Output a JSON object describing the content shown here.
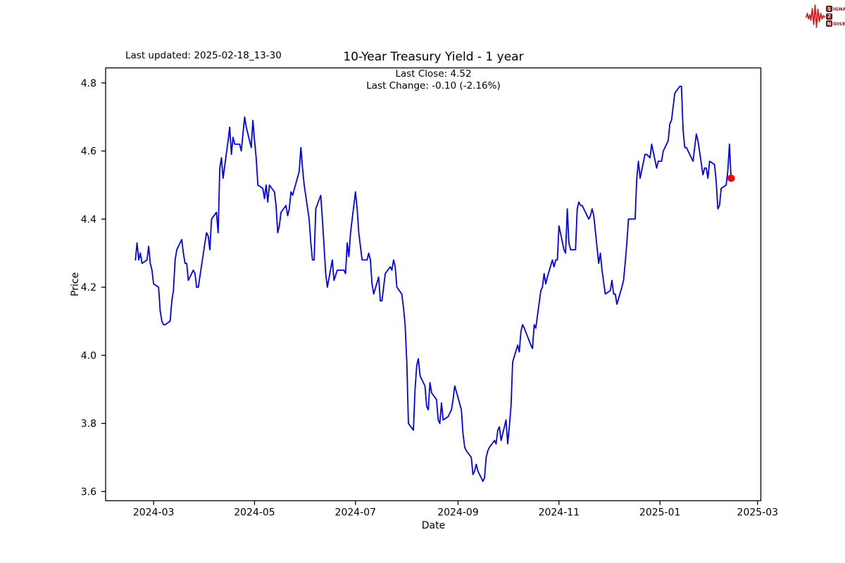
{
  "annotations": {
    "last_updated": "Last updated: 2025-02-18_13-30"
  },
  "logo": {
    "line1_box": "S",
    "line1_rest": "IGNAL",
    "line2_box": "2",
    "line2_rest": "",
    "line3_box": "N",
    "line3_rest": "OISE",
    "waveform_color": "#c01d1d",
    "text_color": "#7d1416"
  },
  "chart_data": {
    "type": "line",
    "title": "10-Year Treasury Yield - 1 year",
    "subtitle_lines": [
      "Last Close: 4.52",
      "Last Change: -0.10 (-2.16%)"
    ],
    "xlabel": "Date",
    "ylabel": "Price",
    "last_close": 4.52,
    "last_change": "-0.10 (-2.16%)",
    "line_color": "#0000ee",
    "marker_color": "#ff0000",
    "grid": false,
    "legend": "none",
    "x_ticks": [
      "2024-03",
      "2024-05",
      "2024-07",
      "2024-09",
      "2024-11",
      "2025-01",
      "2025-03"
    ],
    "y_ticks": [
      "3.6",
      "3.8",
      "4.0",
      "4.2",
      "4.4",
      "4.6",
      "4.8"
    ],
    "x_domain": [
      "2024-02-01",
      "2025-03-03"
    ],
    "y_domain": [
      3.573,
      4.844
    ],
    "series": [
      {
        "name": "10-Year Treasury Yield",
        "points": [
          [
            "2024-02-19",
            4.28
          ],
          [
            "2024-02-20",
            4.33
          ],
          [
            "2024-02-21",
            4.28
          ],
          [
            "2024-02-22",
            4.3
          ],
          [
            "2024-02-23",
            4.27
          ],
          [
            "2024-02-26",
            4.28
          ],
          [
            "2024-02-27",
            4.32
          ],
          [
            "2024-02-28",
            4.27
          ],
          [
            "2024-02-29",
            4.25
          ],
          [
            "2024-03-01",
            4.21
          ],
          [
            "2024-03-04",
            4.2
          ],
          [
            "2024-03-05",
            4.13
          ],
          [
            "2024-03-06",
            4.1
          ],
          [
            "2024-03-07",
            4.09
          ],
          [
            "2024-03-08",
            4.09
          ],
          [
            "2024-03-11",
            4.1
          ],
          [
            "2024-03-12",
            4.16
          ],
          [
            "2024-03-13",
            4.19
          ],
          [
            "2024-03-14",
            4.28
          ],
          [
            "2024-03-15",
            4.31
          ],
          [
            "2024-03-18",
            4.34
          ],
          [
            "2024-03-19",
            4.3
          ],
          [
            "2024-03-20",
            4.27
          ],
          [
            "2024-03-21",
            4.27
          ],
          [
            "2024-03-22",
            4.22
          ],
          [
            "2024-03-25",
            4.25
          ],
          [
            "2024-03-26",
            4.24
          ],
          [
            "2024-03-27",
            4.2
          ],
          [
            "2024-03-28",
            4.2
          ],
          [
            "2024-04-01",
            4.33
          ],
          [
            "2024-04-02",
            4.36
          ],
          [
            "2024-04-03",
            4.35
          ],
          [
            "2024-04-04",
            4.31
          ],
          [
            "2024-04-05",
            4.4
          ],
          [
            "2024-04-08",
            4.42
          ],
          [
            "2024-04-09",
            4.36
          ],
          [
            "2024-04-10",
            4.55
          ],
          [
            "2024-04-11",
            4.58
          ],
          [
            "2024-04-12",
            4.52
          ],
          [
            "2024-04-15",
            4.63
          ],
          [
            "2024-04-16",
            4.67
          ],
          [
            "2024-04-17",
            4.59
          ],
          [
            "2024-04-18",
            4.64
          ],
          [
            "2024-04-19",
            4.62
          ],
          [
            "2024-04-22",
            4.62
          ],
          [
            "2024-04-23",
            4.6
          ],
          [
            "2024-04-24",
            4.65
          ],
          [
            "2024-04-25",
            4.7
          ],
          [
            "2024-04-26",
            4.67
          ],
          [
            "2024-04-29",
            4.61
          ],
          [
            "2024-04-30",
            4.69
          ],
          [
            "2024-05-01",
            4.63
          ],
          [
            "2024-05-02",
            4.58
          ],
          [
            "2024-05-03",
            4.5
          ],
          [
            "2024-05-06",
            4.49
          ],
          [
            "2024-05-07",
            4.46
          ],
          [
            "2024-05-08",
            4.5
          ],
          [
            "2024-05-09",
            4.45
          ],
          [
            "2024-05-10",
            4.5
          ],
          [
            "2024-05-13",
            4.48
          ],
          [
            "2024-05-14",
            4.44
          ],
          [
            "2024-05-15",
            4.36
          ],
          [
            "2024-05-16",
            4.38
          ],
          [
            "2024-05-17",
            4.42
          ],
          [
            "2024-05-20",
            4.44
          ],
          [
            "2024-05-21",
            4.41
          ],
          [
            "2024-05-22",
            4.43
          ],
          [
            "2024-05-23",
            4.48
          ],
          [
            "2024-05-24",
            4.47
          ],
          [
            "2024-05-28",
            4.54
          ],
          [
            "2024-05-29",
            4.61
          ],
          [
            "2024-05-30",
            4.55
          ],
          [
            "2024-05-31",
            4.5
          ],
          [
            "2024-06-03",
            4.4
          ],
          [
            "2024-06-04",
            4.33
          ],
          [
            "2024-06-05",
            4.28
          ],
          [
            "2024-06-06",
            4.28
          ],
          [
            "2024-06-07",
            4.43
          ],
          [
            "2024-06-10",
            4.47
          ],
          [
            "2024-06-11",
            4.4
          ],
          [
            "2024-06-12",
            4.32
          ],
          [
            "2024-06-13",
            4.24
          ],
          [
            "2024-06-14",
            4.2
          ],
          [
            "2024-06-17",
            4.28
          ],
          [
            "2024-06-18",
            4.22
          ],
          [
            "2024-06-20",
            4.25
          ],
          [
            "2024-06-21",
            4.25
          ],
          [
            "2024-06-24",
            4.25
          ],
          [
            "2024-06-25",
            4.24
          ],
          [
            "2024-06-26",
            4.33
          ],
          [
            "2024-06-27",
            4.29
          ],
          [
            "2024-06-28",
            4.36
          ],
          [
            "2024-07-01",
            4.48
          ],
          [
            "2024-07-02",
            4.43
          ],
          [
            "2024-07-03",
            4.36
          ],
          [
            "2024-07-05",
            4.28
          ],
          [
            "2024-07-08",
            4.28
          ],
          [
            "2024-07-09",
            4.3
          ],
          [
            "2024-07-10",
            4.28
          ],
          [
            "2024-07-11",
            4.21
          ],
          [
            "2024-07-12",
            4.18
          ],
          [
            "2024-07-15",
            4.23
          ],
          [
            "2024-07-16",
            4.16
          ],
          [
            "2024-07-17",
            4.16
          ],
          [
            "2024-07-18",
            4.2
          ],
          [
            "2024-07-19",
            4.24
          ],
          [
            "2024-07-22",
            4.26
          ],
          [
            "2024-07-23",
            4.25
          ],
          [
            "2024-07-24",
            4.28
          ],
          [
            "2024-07-25",
            4.26
          ],
          [
            "2024-07-26",
            4.2
          ],
          [
            "2024-07-29",
            4.18
          ],
          [
            "2024-07-30",
            4.14
          ],
          [
            "2024-07-31",
            4.09
          ],
          [
            "2024-08-01",
            3.98
          ],
          [
            "2024-08-02",
            3.8
          ],
          [
            "2024-08-05",
            3.78
          ],
          [
            "2024-08-06",
            3.9
          ],
          [
            "2024-08-07",
            3.97
          ],
          [
            "2024-08-08",
            3.99
          ],
          [
            "2024-08-09",
            3.94
          ],
          [
            "2024-08-12",
            3.91
          ],
          [
            "2024-08-13",
            3.85
          ],
          [
            "2024-08-14",
            3.84
          ],
          [
            "2024-08-15",
            3.92
          ],
          [
            "2024-08-16",
            3.89
          ],
          [
            "2024-08-19",
            3.87
          ],
          [
            "2024-08-20",
            3.81
          ],
          [
            "2024-08-21",
            3.8
          ],
          [
            "2024-08-22",
            3.86
          ],
          [
            "2024-08-23",
            3.81
          ],
          [
            "2024-08-26",
            3.82
          ],
          [
            "2024-08-27",
            3.83
          ],
          [
            "2024-08-28",
            3.84
          ],
          [
            "2024-08-29",
            3.87
          ],
          [
            "2024-08-30",
            3.91
          ],
          [
            "2024-09-03",
            3.84
          ],
          [
            "2024-09-04",
            3.77
          ],
          [
            "2024-09-05",
            3.73
          ],
          [
            "2024-09-06",
            3.72
          ],
          [
            "2024-09-09",
            3.7
          ],
          [
            "2024-09-10",
            3.65
          ],
          [
            "2024-09-11",
            3.66
          ],
          [
            "2024-09-12",
            3.68
          ],
          [
            "2024-09-13",
            3.66
          ],
          [
            "2024-09-16",
            3.63
          ],
          [
            "2024-09-17",
            3.64
          ],
          [
            "2024-09-18",
            3.7
          ],
          [
            "2024-09-19",
            3.72
          ],
          [
            "2024-09-20",
            3.73
          ],
          [
            "2024-09-23",
            3.75
          ],
          [
            "2024-09-24",
            3.74
          ],
          [
            "2024-09-25",
            3.78
          ],
          [
            "2024-09-26",
            3.79
          ],
          [
            "2024-09-27",
            3.75
          ],
          [
            "2024-09-30",
            3.81
          ],
          [
            "2024-10-01",
            3.74
          ],
          [
            "2024-10-02",
            3.79
          ],
          [
            "2024-10-03",
            3.85
          ],
          [
            "2024-10-04",
            3.98
          ],
          [
            "2024-10-07",
            4.03
          ],
          [
            "2024-10-08",
            4.01
          ],
          [
            "2024-10-09",
            4.07
          ],
          [
            "2024-10-10",
            4.09
          ],
          [
            "2024-10-11",
            4.08
          ],
          [
            "2024-10-15",
            4.03
          ],
          [
            "2024-10-16",
            4.02
          ],
          [
            "2024-10-17",
            4.09
          ],
          [
            "2024-10-18",
            4.08
          ],
          [
            "2024-10-21",
            4.19
          ],
          [
            "2024-10-22",
            4.2
          ],
          [
            "2024-10-23",
            4.24
          ],
          [
            "2024-10-24",
            4.21
          ],
          [
            "2024-10-25",
            4.23
          ],
          [
            "2024-10-28",
            4.28
          ],
          [
            "2024-10-29",
            4.26
          ],
          [
            "2024-10-30",
            4.28
          ],
          [
            "2024-10-31",
            4.28
          ],
          [
            "2024-11-01",
            4.38
          ],
          [
            "2024-11-04",
            4.31
          ],
          [
            "2024-11-05",
            4.3
          ],
          [
            "2024-11-06",
            4.43
          ],
          [
            "2024-11-07",
            4.33
          ],
          [
            "2024-11-08",
            4.31
          ],
          [
            "2024-11-11",
            4.31
          ],
          [
            "2024-11-12",
            4.43
          ],
          [
            "2024-11-13",
            4.45
          ],
          [
            "2024-11-14",
            4.44
          ],
          [
            "2024-11-15",
            4.44
          ],
          [
            "2024-11-18",
            4.41
          ],
          [
            "2024-11-19",
            4.4
          ],
          [
            "2024-11-20",
            4.41
          ],
          [
            "2024-11-21",
            4.43
          ],
          [
            "2024-11-22",
            4.41
          ],
          [
            "2024-11-25",
            4.27
          ],
          [
            "2024-11-26",
            4.3
          ],
          [
            "2024-11-27",
            4.25
          ],
          [
            "2024-11-29",
            4.18
          ],
          [
            "2024-12-02",
            4.19
          ],
          [
            "2024-12-03",
            4.22
          ],
          [
            "2024-12-04",
            4.18
          ],
          [
            "2024-12-05",
            4.18
          ],
          [
            "2024-12-06",
            4.15
          ],
          [
            "2024-12-09",
            4.2
          ],
          [
            "2024-12-10",
            4.22
          ],
          [
            "2024-12-11",
            4.27
          ],
          [
            "2024-12-12",
            4.33
          ],
          [
            "2024-12-13",
            4.4
          ],
          [
            "2024-12-16",
            4.4
          ],
          [
            "2024-12-17",
            4.4
          ],
          [
            "2024-12-18",
            4.52
          ],
          [
            "2024-12-19",
            4.57
          ],
          [
            "2024-12-20",
            4.52
          ],
          [
            "2024-12-23",
            4.59
          ],
          [
            "2024-12-24",
            4.59
          ],
          [
            "2024-12-26",
            4.58
          ],
          [
            "2024-12-27",
            4.62
          ],
          [
            "2024-12-30",
            4.55
          ],
          [
            "2024-12-31",
            4.57
          ],
          [
            "2025-01-02",
            4.57
          ],
          [
            "2025-01-03",
            4.6
          ],
          [
            "2025-01-06",
            4.63
          ],
          [
            "2025-01-07",
            4.68
          ],
          [
            "2025-01-08",
            4.69
          ],
          [
            "2025-01-10",
            4.77
          ],
          [
            "2025-01-13",
            4.79
          ],
          [
            "2025-01-14",
            4.79
          ],
          [
            "2025-01-15",
            4.66
          ],
          [
            "2025-01-16",
            4.61
          ],
          [
            "2025-01-17",
            4.61
          ],
          [
            "2025-01-21",
            4.57
          ],
          [
            "2025-01-22",
            4.61
          ],
          [
            "2025-01-23",
            4.65
          ],
          [
            "2025-01-24",
            4.63
          ],
          [
            "2025-01-27",
            4.53
          ],
          [
            "2025-01-28",
            4.55
          ],
          [
            "2025-01-29",
            4.55
          ],
          [
            "2025-01-30",
            4.52
          ],
          [
            "2025-01-31",
            4.57
          ],
          [
            "2025-02-03",
            4.56
          ],
          [
            "2025-02-04",
            4.51
          ],
          [
            "2025-02-05",
            4.43
          ],
          [
            "2025-02-06",
            4.44
          ],
          [
            "2025-02-07",
            4.49
          ],
          [
            "2025-02-10",
            4.5
          ],
          [
            "2025-02-11",
            4.54
          ],
          [
            "2025-02-12",
            4.62
          ],
          [
            "2025-02-13",
            4.52
          ]
        ]
      }
    ]
  }
}
